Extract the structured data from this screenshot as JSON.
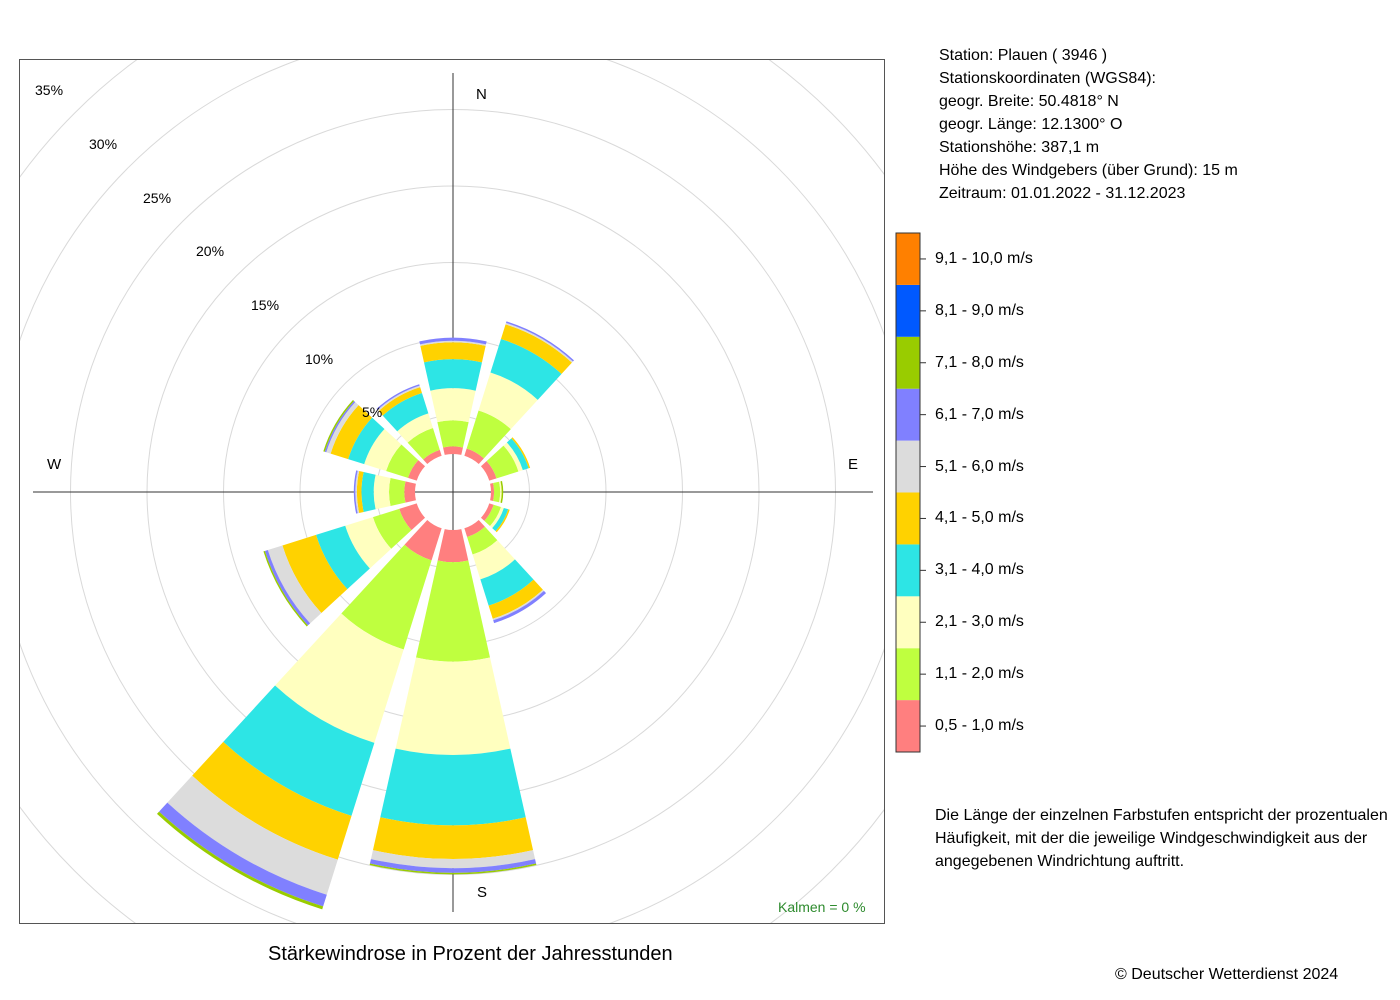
{
  "station": {
    "line1": "Station:  Plauen  ( 3946 )",
    "line2": "Stationskoordinaten (WGS84):",
    "line3": "geogr. Breite: 50.4818° N",
    "line4": "geogr. Länge: 12.1300° O",
    "line5": "Stationshöhe: 387,1 m",
    "line6": "Höhe des Windgebers (über Grund): 15 m",
    "line7": "Zeitraum: 01.01.2022 - 31.12.2023"
  },
  "note": "Die Länge der einzelnen Farbstufen entspricht der prozentualen Häufigkeit, mit der die jeweilige Windgeschwindigkeit aus der angegebenen Windrichtung auftritt.",
  "copyright": "© Deutscher Wetterdienst  2024",
  "chart_data": {
    "type": "windrose",
    "title": "Stärkewindrose in Prozent der Jahresstunden",
    "calm": "Kalmen  =  0 %",
    "directions": {
      "n": "N",
      "e": "E",
      "s": "S",
      "w": "W"
    },
    "ring_labels": [
      "5%",
      "10%",
      "15%",
      "20%",
      "25%",
      "30%",
      "35%"
    ],
    "rings": [
      5,
      10,
      15,
      20,
      25,
      30,
      35
    ],
    "sector_centers_deg": [
      0,
      30,
      60,
      90,
      120,
      150,
      180,
      210,
      240,
      270,
      300,
      330
    ],
    "classes": [
      {
        "label": "0,5 - 1,0 m/s",
        "color": "#ff7f7f"
      },
      {
        "label": "1,1 - 2,0 m/s",
        "color": "#bfff3f"
      },
      {
        "label": "2,1 - 3,0 m/s",
        "color": "#ffffbf"
      },
      {
        "label": "3,1 - 4,0 m/s",
        "color": "#2de5e5"
      },
      {
        "label": "4,1 - 5,0 m/s",
        "color": "#ffd200"
      },
      {
        "label": "5,1 - 6,0 m/s",
        "color": "#dcdcdc"
      },
      {
        "label": "6,1 - 7,0 m/s",
        "color": "#8080ff"
      },
      {
        "label": "7,1 - 8,0 m/s",
        "color": "#99cc00"
      },
      {
        "label": "8,1 - 9,0 m/s",
        "color": "#0059ff"
      },
      {
        "label": "9,1 - 10,0 m/s",
        "color": "#ff8000"
      }
    ],
    "series": [
      {
        "direction_deg": 0,
        "values": [
          0.5,
          1.7,
          2.1,
          1.9,
          1.1,
          0.1,
          0.2,
          0.0,
          0.0,
          0.0
        ]
      },
      {
        "direction_deg": 30,
        "values": [
          0.5,
          2.6,
          2.6,
          2.3,
          1.0,
          0.1,
          0.1,
          0.0,
          0.0,
          0.0
        ]
      },
      {
        "direction_deg": 60,
        "values": [
          0.5,
          1.5,
          0.3,
          0.4,
          0.1,
          0.0,
          0.0,
          0.0,
          0.0,
          0.0
        ]
      },
      {
        "direction_deg": 90,
        "values": [
          0.2,
          0.4,
          0.1,
          0.0,
          0.0,
          0.0,
          0.0,
          0.1,
          0.0,
          0.0
        ]
      },
      {
        "direction_deg": 120,
        "values": [
          0.3,
          0.5,
          0.2,
          0.3,
          0.1,
          0.0,
          0.0,
          0.0,
          0.0,
          0.0
        ]
      },
      {
        "direction_deg": 150,
        "values": [
          0.6,
          1.2,
          1.7,
          1.8,
          0.9,
          0.1,
          0.2,
          0.0,
          0.0,
          0.0
        ]
      },
      {
        "direction_deg": 180,
        "values": [
          2.1,
          6.5,
          6.1,
          4.6,
          2.2,
          0.6,
          0.3,
          0.1,
          0.0,
          0.0
        ]
      },
      {
        "direction_deg": 210,
        "values": [
          2.2,
          6.1,
          6.4,
          5.0,
          3.0,
          2.4,
          0.8,
          0.2,
          0.0,
          0.0
        ]
      },
      {
        "direction_deg": 240,
        "values": [
          1.2,
          1.8,
          1.9,
          2.0,
          2.3,
          1.0,
          0.2,
          0.1,
          0.0,
          0.0
        ]
      },
      {
        "direction_deg": 270,
        "values": [
          0.7,
          1.0,
          1.0,
          0.8,
          0.3,
          0.1,
          0.1,
          0.0,
          0.0,
          0.0
        ]
      },
      {
        "direction_deg": 300,
        "values": [
          0.6,
          1.5,
          1.5,
          1.1,
          1.2,
          0.3,
          0.1,
          0.1,
          0.0,
          0.0
        ]
      },
      {
        "direction_deg": 330,
        "values": [
          0.4,
          1.5,
          1.0,
          1.4,
          0.4,
          0.1,
          0.1,
          0.0,
          0.0,
          0.0
        ]
      }
    ]
  }
}
